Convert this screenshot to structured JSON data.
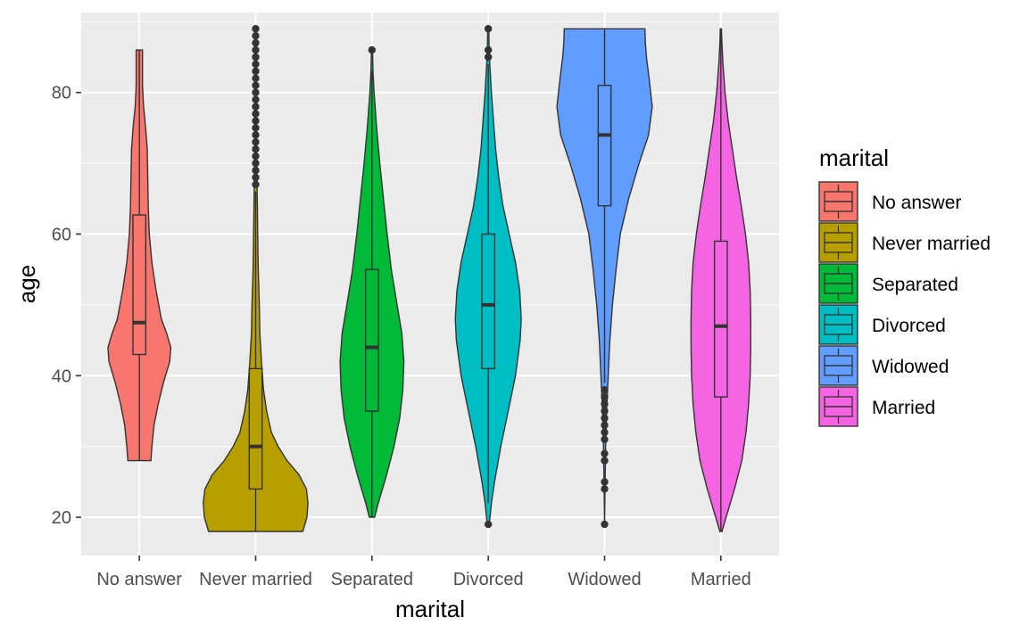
{
  "chart_data": {
    "type": "violin",
    "xlabel": "marital",
    "ylabel": "age",
    "ylim": [
      14.6,
      91.3
    ],
    "yticks": [
      20,
      40,
      60,
      80
    ],
    "grid": true,
    "legend": {
      "title": "marital",
      "position": "right"
    },
    "categories": [
      "No answer",
      "Never married",
      "Separated",
      "Divorced",
      "Widowed",
      "Married"
    ],
    "series": [
      {
        "name": "No answer",
        "color": "#F8766D",
        "min": 28,
        "max": 86,
        "box": {
          "q1": 43,
          "median": 47.5,
          "q3": 62.7,
          "whisker_low": 28,
          "whisker_high": 86
        },
        "outliers": [],
        "density": [
          [
            28,
            0.22
          ],
          [
            30,
            0.24
          ],
          [
            33,
            0.28
          ],
          [
            36,
            0.36
          ],
          [
            39,
            0.46
          ],
          [
            42,
            0.58
          ],
          [
            44,
            0.6
          ],
          [
            46,
            0.52
          ],
          [
            48,
            0.42
          ],
          [
            52,
            0.32
          ],
          [
            56,
            0.24
          ],
          [
            60,
            0.19
          ],
          [
            64,
            0.17
          ],
          [
            68,
            0.16
          ],
          [
            72,
            0.15
          ],
          [
            75,
            0.12
          ],
          [
            78,
            0.08
          ],
          [
            81,
            0.06
          ],
          [
            84,
            0.06
          ],
          [
            86,
            0.06
          ]
        ]
      },
      {
        "name": "Never married",
        "color": "#B79F00",
        "min": 18,
        "max": 89,
        "box": {
          "q1": 24,
          "median": 30,
          "q3": 41,
          "whisker_low": 18,
          "whisker_high": 66
        },
        "outliers": [
          67,
          68,
          69,
          70,
          71,
          72,
          73,
          74,
          75,
          76,
          77,
          78,
          79,
          80,
          81,
          82,
          83,
          84,
          85,
          86,
          87,
          88,
          89
        ],
        "density": [
          [
            18,
            0.9
          ],
          [
            20,
            0.98
          ],
          [
            22,
            1.0
          ],
          [
            24,
            0.97
          ],
          [
            26,
            0.83
          ],
          [
            28,
            0.6
          ],
          [
            30,
            0.43
          ],
          [
            32,
            0.3
          ],
          [
            35,
            0.21
          ],
          [
            38,
            0.15
          ],
          [
            42,
            0.11
          ],
          [
            46,
            0.08
          ],
          [
            50,
            0.07
          ],
          [
            55,
            0.05
          ],
          [
            60,
            0.04
          ],
          [
            65,
            0.03
          ],
          [
            70,
            0.02
          ],
          [
            75,
            0.015
          ],
          [
            80,
            0.012
          ],
          [
            85,
            0.01
          ],
          [
            89,
            0.008
          ]
        ]
      },
      {
        "name": "Separated",
        "color": "#00BA38",
        "min": 20,
        "max": 86,
        "box": {
          "q1": 35,
          "median": 44,
          "q3": 55,
          "whisker_low": 20,
          "whisker_high": 83
        },
        "outliers": [
          86
        ],
        "density": [
          [
            20,
            0.05
          ],
          [
            22,
            0.12
          ],
          [
            26,
            0.28
          ],
          [
            30,
            0.42
          ],
          [
            34,
            0.53
          ],
          [
            38,
            0.59
          ],
          [
            42,
            0.61
          ],
          [
            46,
            0.57
          ],
          [
            50,
            0.48
          ],
          [
            55,
            0.37
          ],
          [
            60,
            0.29
          ],
          [
            65,
            0.22
          ],
          [
            70,
            0.15
          ],
          [
            75,
            0.09
          ],
          [
            80,
            0.04
          ],
          [
            83,
            0.02
          ],
          [
            86,
            0.01
          ]
        ]
      },
      {
        "name": "Divorced",
        "color": "#00BFC4",
        "min": 19,
        "max": 89,
        "box": {
          "q1": 41,
          "median": 50,
          "q3": 60,
          "whisker_low": 22,
          "whisker_high": 84
        },
        "outliers": [
          19,
          85,
          86,
          89
        ],
        "density": [
          [
            19,
            0.02
          ],
          [
            22,
            0.06
          ],
          [
            25,
            0.12
          ],
          [
            30,
            0.24
          ],
          [
            35,
            0.38
          ],
          [
            40,
            0.52
          ],
          [
            45,
            0.61
          ],
          [
            48,
            0.63
          ],
          [
            52,
            0.6
          ],
          [
            56,
            0.52
          ],
          [
            60,
            0.4
          ],
          [
            64,
            0.28
          ],
          [
            68,
            0.2
          ],
          [
            72,
            0.14
          ],
          [
            76,
            0.1
          ],
          [
            80,
            0.06
          ],
          [
            84,
            0.03
          ],
          [
            87,
            0.015
          ],
          [
            89,
            0.01
          ]
        ]
      },
      {
        "name": "Widowed",
        "color": "#619CFF",
        "min": 19,
        "max": 89,
        "box": {
          "q1": 64,
          "median": 74,
          "q3": 81,
          "whisker_low": 39,
          "whisker_high": 89
        },
        "outliers": [
          19,
          24,
          25,
          28,
          29,
          31,
          32,
          33,
          34,
          35,
          36,
          37,
          38
        ],
        "density": [
          [
            19,
            0.0
          ],
          [
            25,
            0.01
          ],
          [
            30,
            0.02
          ],
          [
            35,
            0.04
          ],
          [
            40,
            0.07
          ],
          [
            45,
            0.1
          ],
          [
            50,
            0.15
          ],
          [
            55,
            0.22
          ],
          [
            60,
            0.3
          ],
          [
            65,
            0.46
          ],
          [
            70,
            0.66
          ],
          [
            74,
            0.84
          ],
          [
            78,
            0.91
          ],
          [
            82,
            0.85
          ],
          [
            85,
            0.8
          ],
          [
            87,
            0.78
          ],
          [
            89,
            0.77
          ]
        ]
      },
      {
        "name": "Married",
        "color": "#F564E3",
        "min": 18,
        "max": 89,
        "box": {
          "q1": 37,
          "median": 47,
          "q3": 59,
          "whisker_low": 18,
          "whisker_high": 89
        },
        "outliers": [],
        "density": [
          [
            18,
            0.02
          ],
          [
            20,
            0.1
          ],
          [
            24,
            0.26
          ],
          [
            28,
            0.4
          ],
          [
            32,
            0.48
          ],
          [
            36,
            0.53
          ],
          [
            40,
            0.56
          ],
          [
            44,
            0.57
          ],
          [
            48,
            0.57
          ],
          [
            52,
            0.56
          ],
          [
            56,
            0.53
          ],
          [
            60,
            0.47
          ],
          [
            64,
            0.39
          ],
          [
            68,
            0.3
          ],
          [
            72,
            0.22
          ],
          [
            76,
            0.14
          ],
          [
            80,
            0.08
          ],
          [
            84,
            0.04
          ],
          [
            87,
            0.02
          ],
          [
            89,
            0.01
          ]
        ]
      }
    ]
  }
}
